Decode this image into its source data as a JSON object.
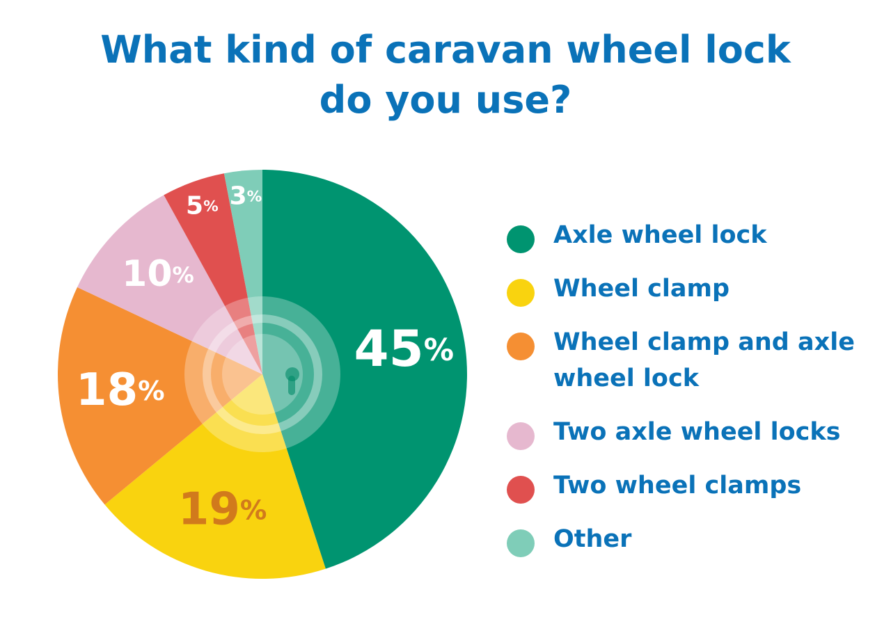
{
  "chart_data": {
    "type": "pie",
    "title": "What kind of caravan wheel lock do you use?",
    "categories": [
      "Axle wheel lock",
      "Wheel clamp",
      "Wheel clamp and axle wheel lock",
      "Two axle wheel locks",
      "Two wheel clamps",
      "Other"
    ],
    "values": [
      45,
      19,
      18,
      10,
      5,
      3
    ],
    "value_labels": [
      "45%",
      "19%",
      "18%",
      "10%",
      "5%",
      "3%"
    ],
    "colors": [
      "#009470",
      "#f9d30f",
      "#f58f33",
      "#e6b8cf",
      "#e0504f",
      "#7fcdb8"
    ],
    "value_label_colors": [
      "#ffffff",
      "#d17a1c",
      "#ffffff",
      "#ffffff",
      "#ffffff",
      "#ffffff"
    ]
  }
}
